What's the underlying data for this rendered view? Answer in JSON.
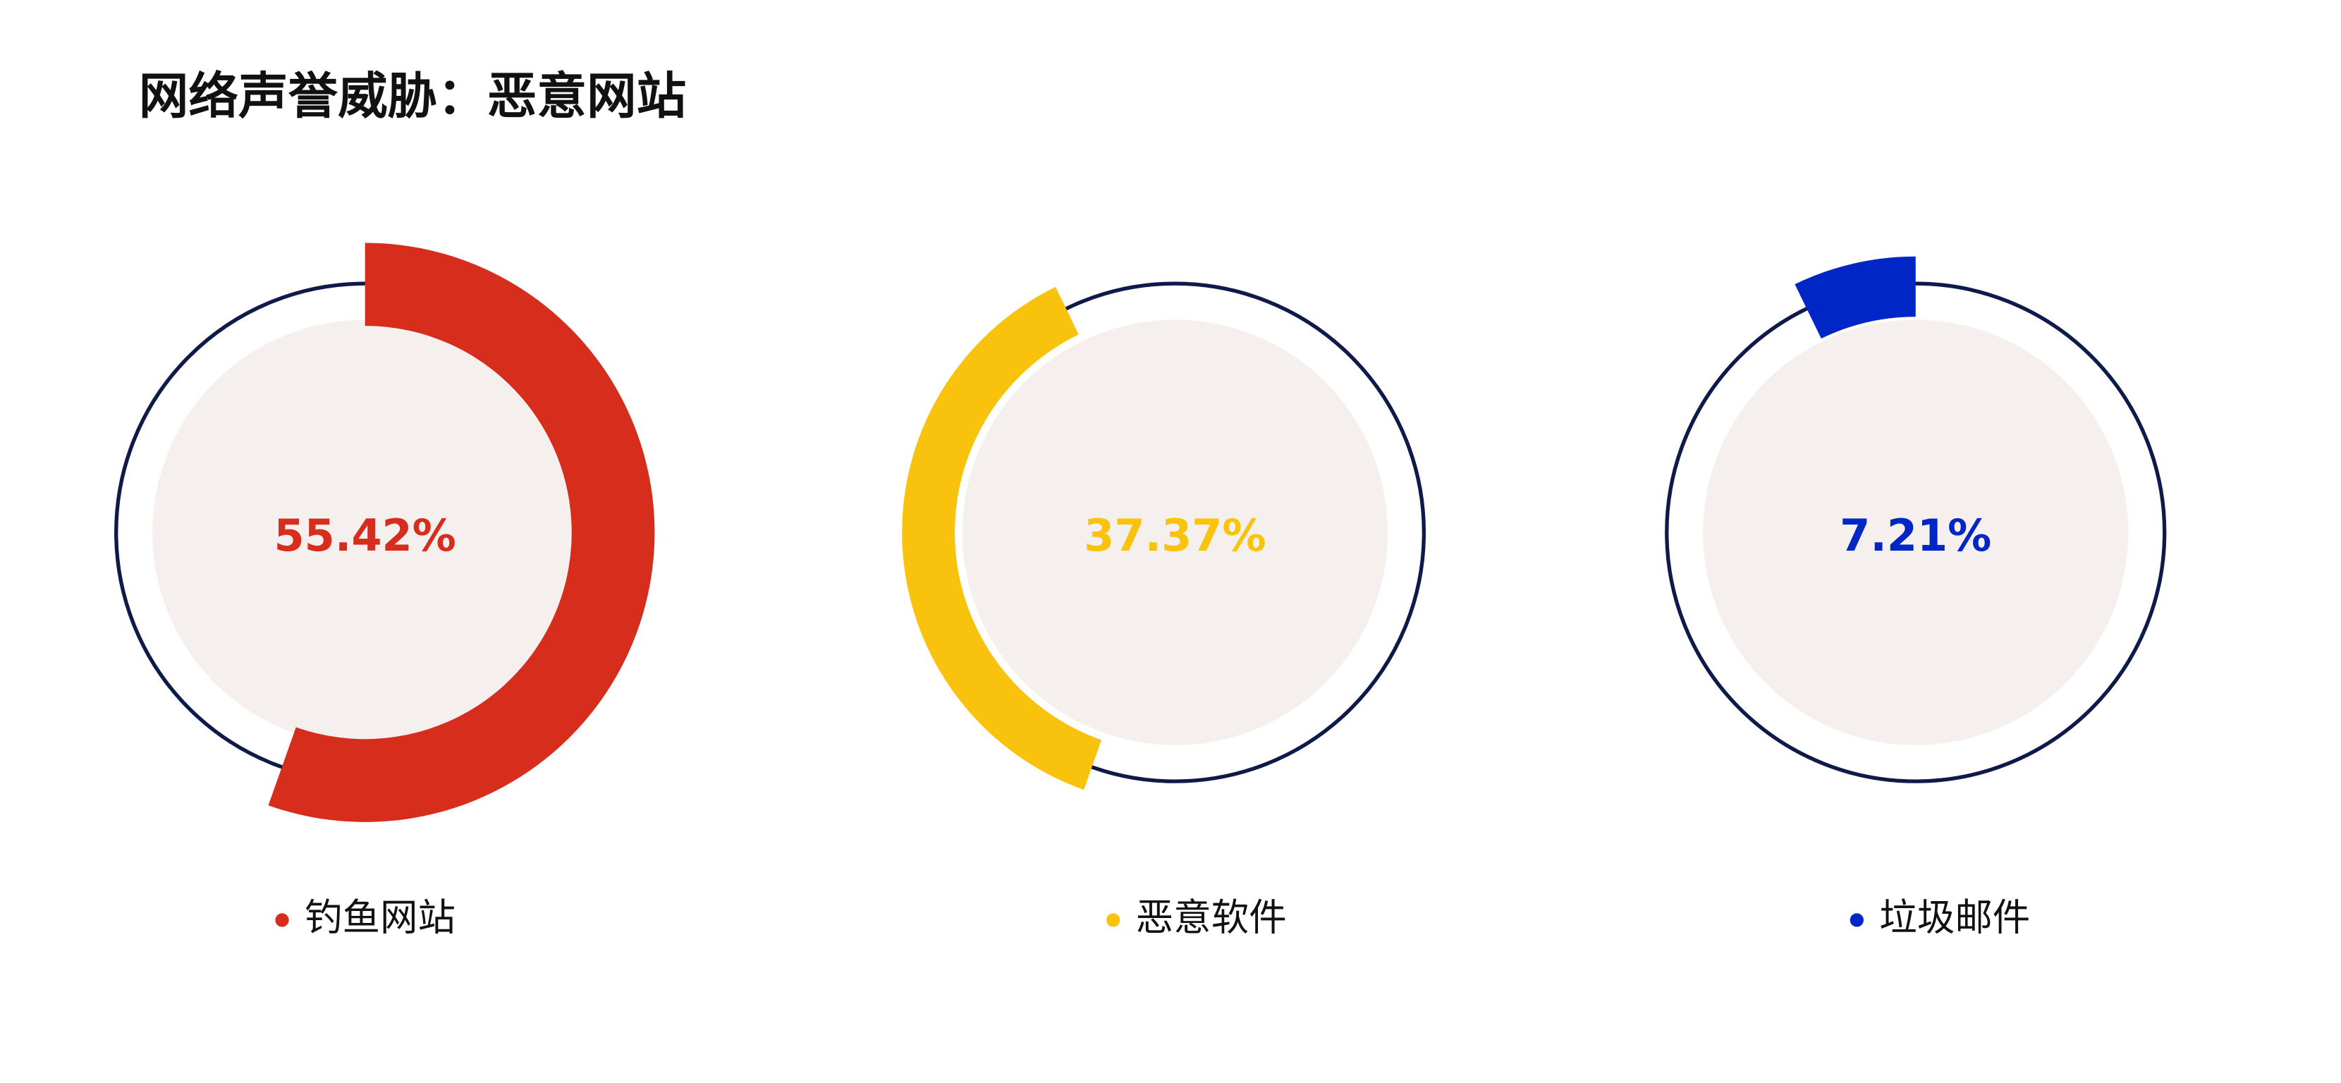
{
  "chart_data": {
    "type": "gauge",
    "title": "网络声誉威胁：恶意网站",
    "series": [
      {
        "name": "钓鱼网站",
        "color": "#d62d1d",
        "values": [
          55.42
        ],
        "value_labels": [
          "55.42%"
        ]
      },
      {
        "name": "恶意软件",
        "color": "#f9c20c",
        "values": [
          37.37
        ],
        "value_labels": [
          "37.37%"
        ]
      },
      {
        "name": "垃圾邮件",
        "color": "#0026c5",
        "values": [
          7.21
        ],
        "value_labels": [
          "7.21%"
        ]
      }
    ]
  }
}
